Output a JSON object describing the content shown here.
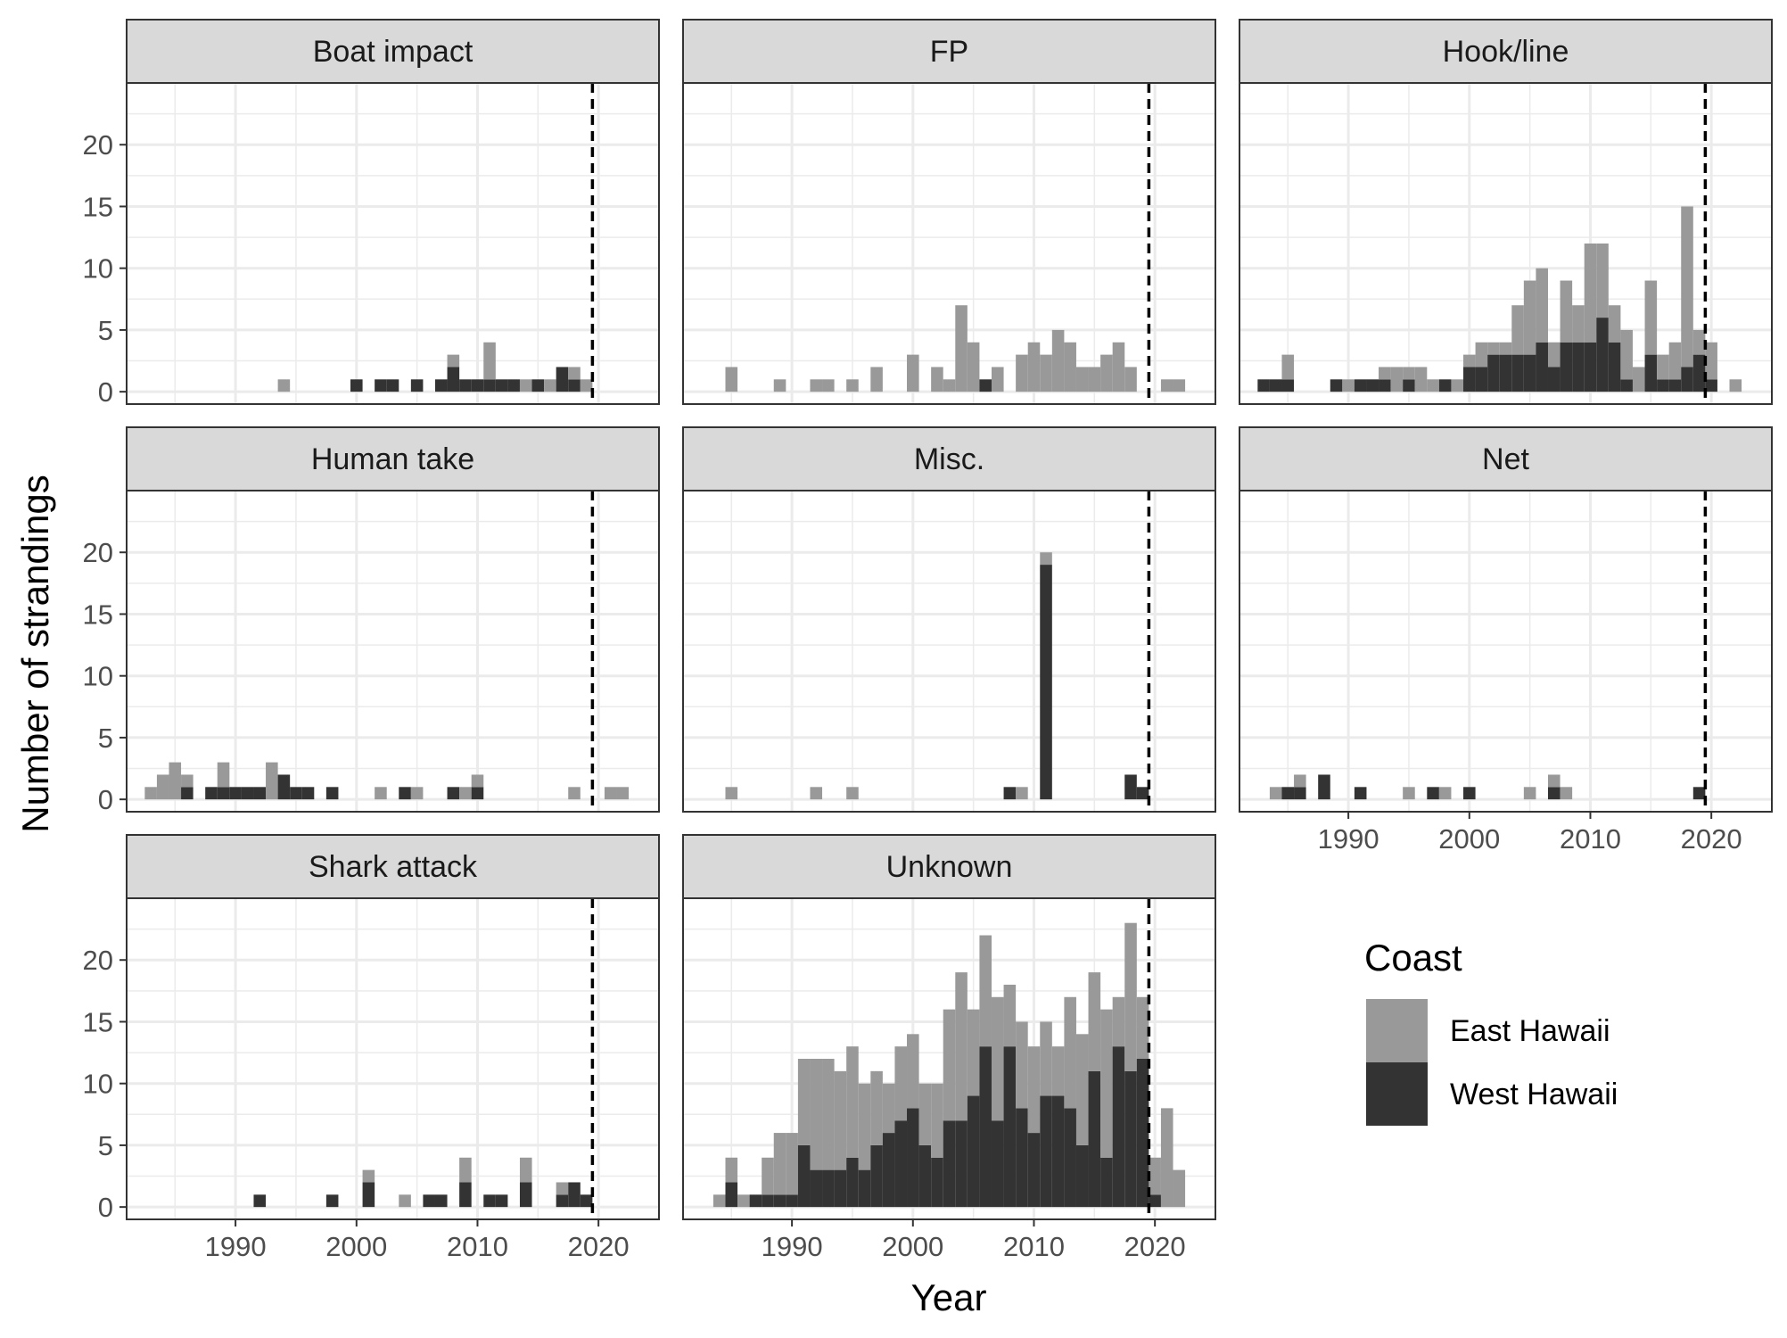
{
  "chart_data": {
    "type": "bar",
    "stacked": true,
    "faceted": true,
    "xlabel": "Year",
    "ylabel": "Number of strandings",
    "xlim": [
      1981,
      2025
    ],
    "ylim": [
      -1,
      25
    ],
    "x_ticks": [
      1990,
      2000,
      2010,
      2020
    ],
    "y_ticks": [
      0,
      5,
      10,
      15,
      20
    ],
    "reference_line": {
      "x": 2019.5,
      "style": "dashed"
    },
    "grid": true,
    "legend": {
      "title": "Coast",
      "placement": "bottom-right",
      "entries": [
        {
          "label": "East Hawaii",
          "color": "#999999"
        },
        {
          "label": "West Hawaii",
          "color": "#333333"
        }
      ]
    },
    "colors": {
      "East Hawaii": "#999999",
      "West Hawaii": "#333333",
      "strip_bg": "#d9d9d9",
      "grid": "#ebebeb"
    },
    "panels": [
      {
        "title": "Boat impact",
        "x": [
          1994,
          2000,
          2002,
          2003,
          2005,
          2007,
          2008,
          2009,
          2010,
          2011,
          2012,
          2013,
          2014,
          2015,
          2016,
          2017,
          2018,
          2019
        ],
        "series": [
          {
            "name": "East Hawaii",
            "values": [
              1,
              0,
              0,
              0,
              0,
              0,
              1,
              0,
              0,
              3,
              0,
              0,
              1,
              0,
              1,
              0,
              1,
              1
            ]
          },
          {
            "name": "West Hawaii",
            "values": [
              0,
              1,
              1,
              1,
              1,
              1,
              2,
              1,
              1,
              1,
              1,
              1,
              0,
              1,
              0,
              2,
              1,
              0
            ]
          }
        ]
      },
      {
        "title": "FP",
        "x": [
          1985,
          1989,
          1992,
          1993,
          1995,
          1997,
          2000,
          2002,
          2003,
          2004,
          2005,
          2006,
          2007,
          2009,
          2010,
          2011,
          2012,
          2013,
          2014,
          2015,
          2016,
          2017,
          2018,
          2019,
          2021,
          2022
        ],
        "series": [
          {
            "name": "East Hawaii",
            "values": [
              2,
              1,
              1,
              1,
              1,
              2,
              3,
              2,
              1,
              7,
              4,
              0,
              2,
              3,
              4,
              3,
              5,
              4,
              2,
              2,
              3,
              4,
              2,
              0,
              1,
              1
            ]
          },
          {
            "name": "West Hawaii",
            "values": [
              0,
              0,
              0,
              0,
              0,
              0,
              0,
              0,
              0,
              0,
              0,
              1,
              0,
              0,
              0,
              0,
              0,
              0,
              0,
              0,
              0,
              0,
              0,
              0,
              0,
              0
            ]
          }
        ]
      },
      {
        "title": "Hook/line",
        "x": [
          1983,
          1984,
          1985,
          1989,
          1990,
          1991,
          1992,
          1993,
          1994,
          1995,
          1996,
          1997,
          1998,
          1999,
          2000,
          2001,
          2002,
          2003,
          2004,
          2005,
          2006,
          2007,
          2008,
          2009,
          2010,
          2011,
          2012,
          2013,
          2014,
          2015,
          2016,
          2017,
          2018,
          2019,
          2020,
          2022
        ],
        "series": [
          {
            "name": "East Hawaii",
            "values": [
              0,
              0,
              2,
              0,
              1,
              0,
              0,
              1,
              2,
              1,
              2,
              1,
              0,
              1,
              1,
              2,
              1,
              1,
              4,
              6,
              6,
              2,
              5,
              3,
              8,
              6,
              3,
              4,
              2,
              6,
              2,
              3,
              13,
              2,
              3,
              1
            ]
          },
          {
            "name": "West Hawaii",
            "values": [
              1,
              1,
              1,
              1,
              0,
              1,
              1,
              1,
              0,
              1,
              0,
              0,
              1,
              0,
              2,
              2,
              3,
              3,
              3,
              3,
              4,
              2,
              4,
              4,
              4,
              6,
              4,
              1,
              0,
              3,
              1,
              1,
              2,
              3,
              1,
              0
            ]
          }
        ]
      },
      {
        "title": "Human take",
        "x": [
          1983,
          1984,
          1985,
          1986,
          1988,
          1989,
          1990,
          1991,
          1992,
          1993,
          1994,
          1995,
          1996,
          1998,
          2002,
          2004,
          2005,
          2008,
          2009,
          2010,
          2018,
          2021,
          2022
        ],
        "series": [
          {
            "name": "East Hawaii",
            "values": [
              1,
              2,
              3,
              1,
              0,
              2,
              0,
              0,
              0,
              3,
              0,
              0,
              0,
              0,
              1,
              0,
              1,
              0,
              1,
              1,
              1,
              1,
              1
            ]
          },
          {
            "name": "West Hawaii",
            "values": [
              0,
              0,
              0,
              1,
              1,
              1,
              1,
              1,
              1,
              0,
              2,
              1,
              1,
              1,
              0,
              1,
              0,
              1,
              0,
              1,
              0,
              0,
              0
            ]
          }
        ]
      },
      {
        "title": "Misc.",
        "x": [
          1985,
          1992,
          1995,
          2008,
          2009,
          2011,
          2018,
          2019
        ],
        "series": [
          {
            "name": "East Hawaii",
            "values": [
              1,
              1,
              1,
              0,
              1,
              1,
              0,
              0
            ]
          },
          {
            "name": "West Hawaii",
            "values": [
              0,
              0,
              0,
              1,
              0,
              19,
              2,
              1
            ]
          }
        ]
      },
      {
        "title": "Net",
        "x": [
          1984,
          1985,
          1986,
          1988,
          1991,
          1995,
          1997,
          1998,
          2000,
          2005,
          2007,
          2008,
          2019
        ],
        "series": [
          {
            "name": "East Hawaii",
            "values": [
              1,
              0,
              1,
              0,
              0,
              1,
              0,
              1,
              0,
              1,
              1,
              1,
              0
            ]
          },
          {
            "name": "West Hawaii",
            "values": [
              0,
              1,
              1,
              2,
              1,
              0,
              1,
              0,
              1,
              0,
              1,
              0,
              1
            ]
          }
        ]
      },
      {
        "title": "Shark attack",
        "x": [
          1992,
          1998,
          2001,
          2004,
          2006,
          2007,
          2009,
          2011,
          2012,
          2014,
          2017,
          2018,
          2019
        ],
        "series": [
          {
            "name": "East Hawaii",
            "values": [
              0,
              0,
              1,
              1,
              0,
              0,
              2,
              0,
              0,
              2,
              1,
              0,
              0
            ]
          },
          {
            "name": "West Hawaii",
            "values": [
              1,
              1,
              2,
              0,
              1,
              1,
              2,
              1,
              1,
              2,
              1,
              2,
              1
            ]
          }
        ]
      },
      {
        "title": "Unknown",
        "x": [
          1984,
          1985,
          1986,
          1987,
          1988,
          1989,
          1990,
          1991,
          1992,
          1993,
          1994,
          1995,
          1996,
          1997,
          1998,
          1999,
          2000,
          2001,
          2002,
          2003,
          2004,
          2005,
          2006,
          2007,
          2008,
          2009,
          2010,
          2011,
          2012,
          2013,
          2014,
          2015,
          2016,
          2017,
          2018,
          2019,
          2020,
          2021,
          2022
        ],
        "series": [
          {
            "name": "East Hawaii",
            "values": [
              1,
              2,
              1,
              0,
              3,
              5,
              5,
              7,
              9,
              9,
              8,
              9,
              7,
              6,
              4,
              6,
              6,
              5,
              6,
              9,
              12,
              7,
              9,
              10,
              5,
              7,
              7,
              6,
              4,
              9,
              9,
              8,
              12,
              4,
              12,
              5,
              3,
              8,
              3
            ]
          },
          {
            "name": "West Hawaii",
            "values": [
              0,
              2,
              0,
              1,
              1,
              1,
              1,
              5,
              3,
              3,
              3,
              4,
              3,
              5,
              6,
              7,
              8,
              5,
              4,
              7,
              7,
              9,
              13,
              7,
              13,
              8,
              6,
              9,
              9,
              8,
              5,
              11,
              4,
              13,
              11,
              12,
              1,
              0,
              0
            ]
          }
        ]
      }
    ]
  }
}
